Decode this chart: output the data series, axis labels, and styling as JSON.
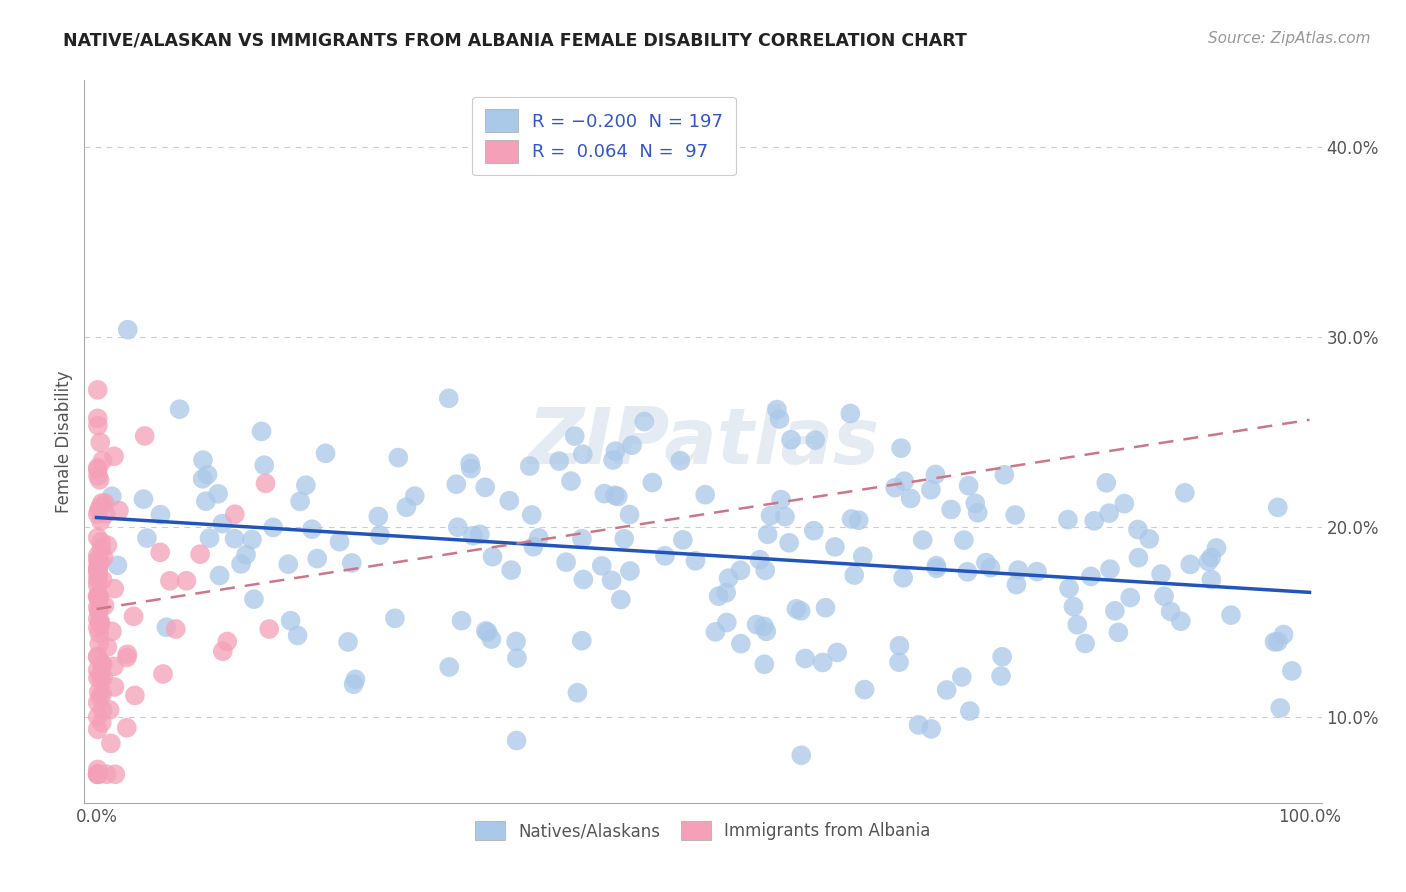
{
  "title": "NATIVE/ALASKAN VS IMMIGRANTS FROM ALBANIA FEMALE DISABILITY CORRELATION CHART",
  "source": "Source: ZipAtlas.com",
  "ylabel": "Female Disability",
  "xlim": [
    -0.01,
    1.01
  ],
  "ylim": [
    0.055,
    0.435
  ],
  "y_ticks": [
    0.1,
    0.2,
    0.3,
    0.4
  ],
  "y_tick_labels": [
    "10.0%",
    "20.0%",
    "30.0%",
    "40.0%"
  ],
  "blue_color": "#aac8e8",
  "pink_color": "#f4a0b8",
  "blue_line_color": "#2255bb",
  "pink_line_color": "#cc7788",
  "watermark": "ZIPatlas",
  "watermark_color": "#ccd8e8",
  "grid_color": "#cccccc",
  "spine_color": "#aaaaaa",
  "title_color": "#222222",
  "source_color": "#999999",
  "label_color": "#555555",
  "legend_text_color": "#3355cc",
  "bottom_legend_color": "#555555"
}
